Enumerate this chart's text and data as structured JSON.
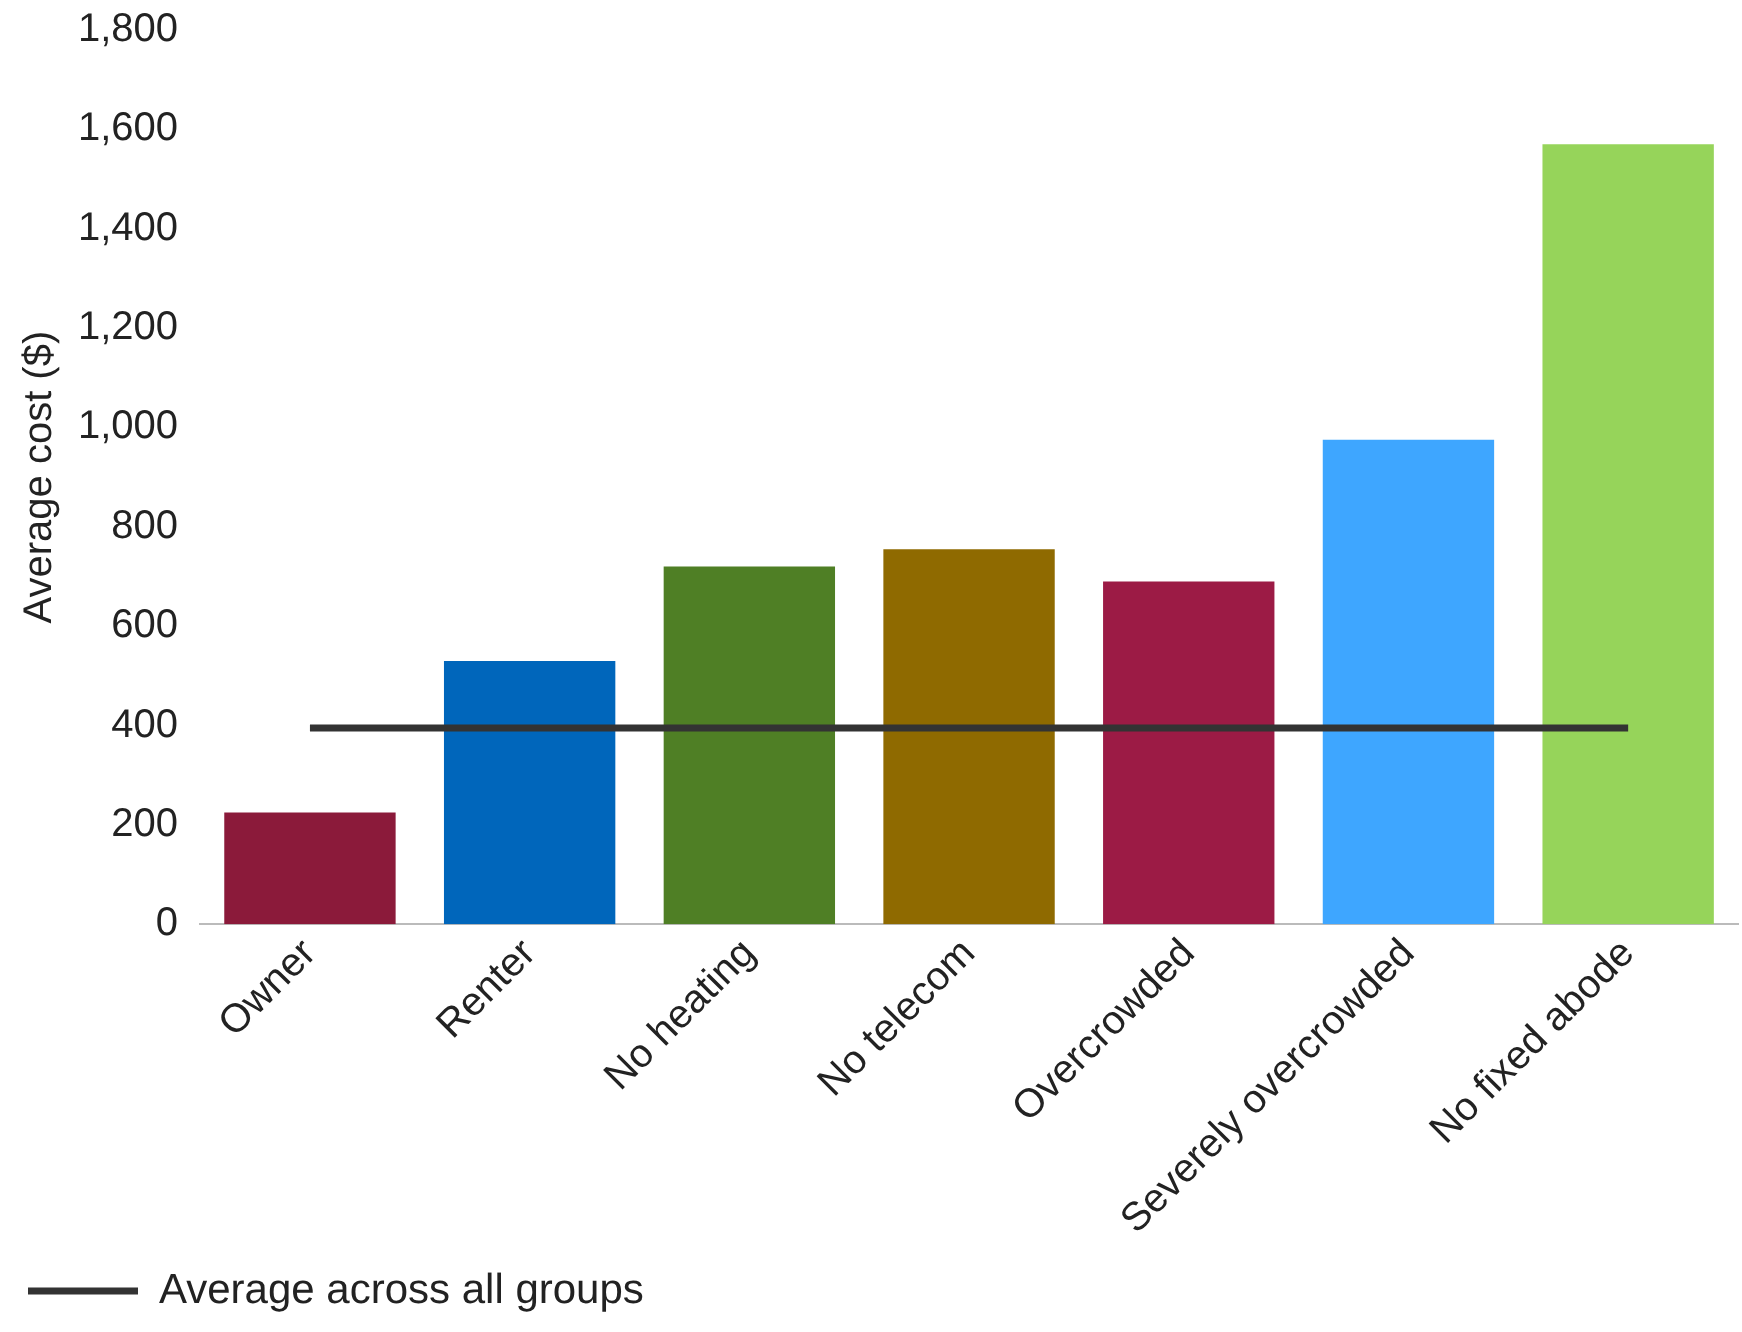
{
  "chart_data": {
    "type": "bar",
    "ylabel": "Average cost ($)",
    "categories": [
      "Owner",
      "Renter",
      "No heating",
      "No telecom",
      "Overcrowded",
      "Severely overcrowded",
      "No fixed abode"
    ],
    "series": [
      {
        "colors": [
          "#8b1a3a",
          "#0066bb",
          "#4f7f25",
          "#8f6a00",
          "#9c1b45",
          "#3ea6ff",
          "#96d45a"
        ],
        "values": [
          225,
          530,
          720,
          755,
          690,
          975,
          1570
        ]
      },
      {
        "type": "line",
        "name": "Average across all groups",
        "color": "#333333",
        "values": [
          395,
          395,
          395,
          395,
          395,
          395,
          395
        ]
      }
    ],
    "ylim": [
      0,
      1800
    ],
    "yticks": [
      0,
      {
        "value": 200,
        "label": "200"
      },
      {
        "value": 400,
        "label": "400"
      },
      {
        "value": 600,
        "label": "600"
      },
      {
        "value": 800,
        "label": "800"
      },
      {
        "value": 1000,
        "label": "1,000"
      },
      {
        "value": 1200,
        "label": "1,200"
      },
      {
        "value": 1400,
        "label": "1,400"
      },
      {
        "value": 1600,
        "label": "1,600"
      },
      {
        "value": 1800,
        "label": "1,800"
      }
    ],
    "grid": false,
    "legend": "bottom left"
  }
}
